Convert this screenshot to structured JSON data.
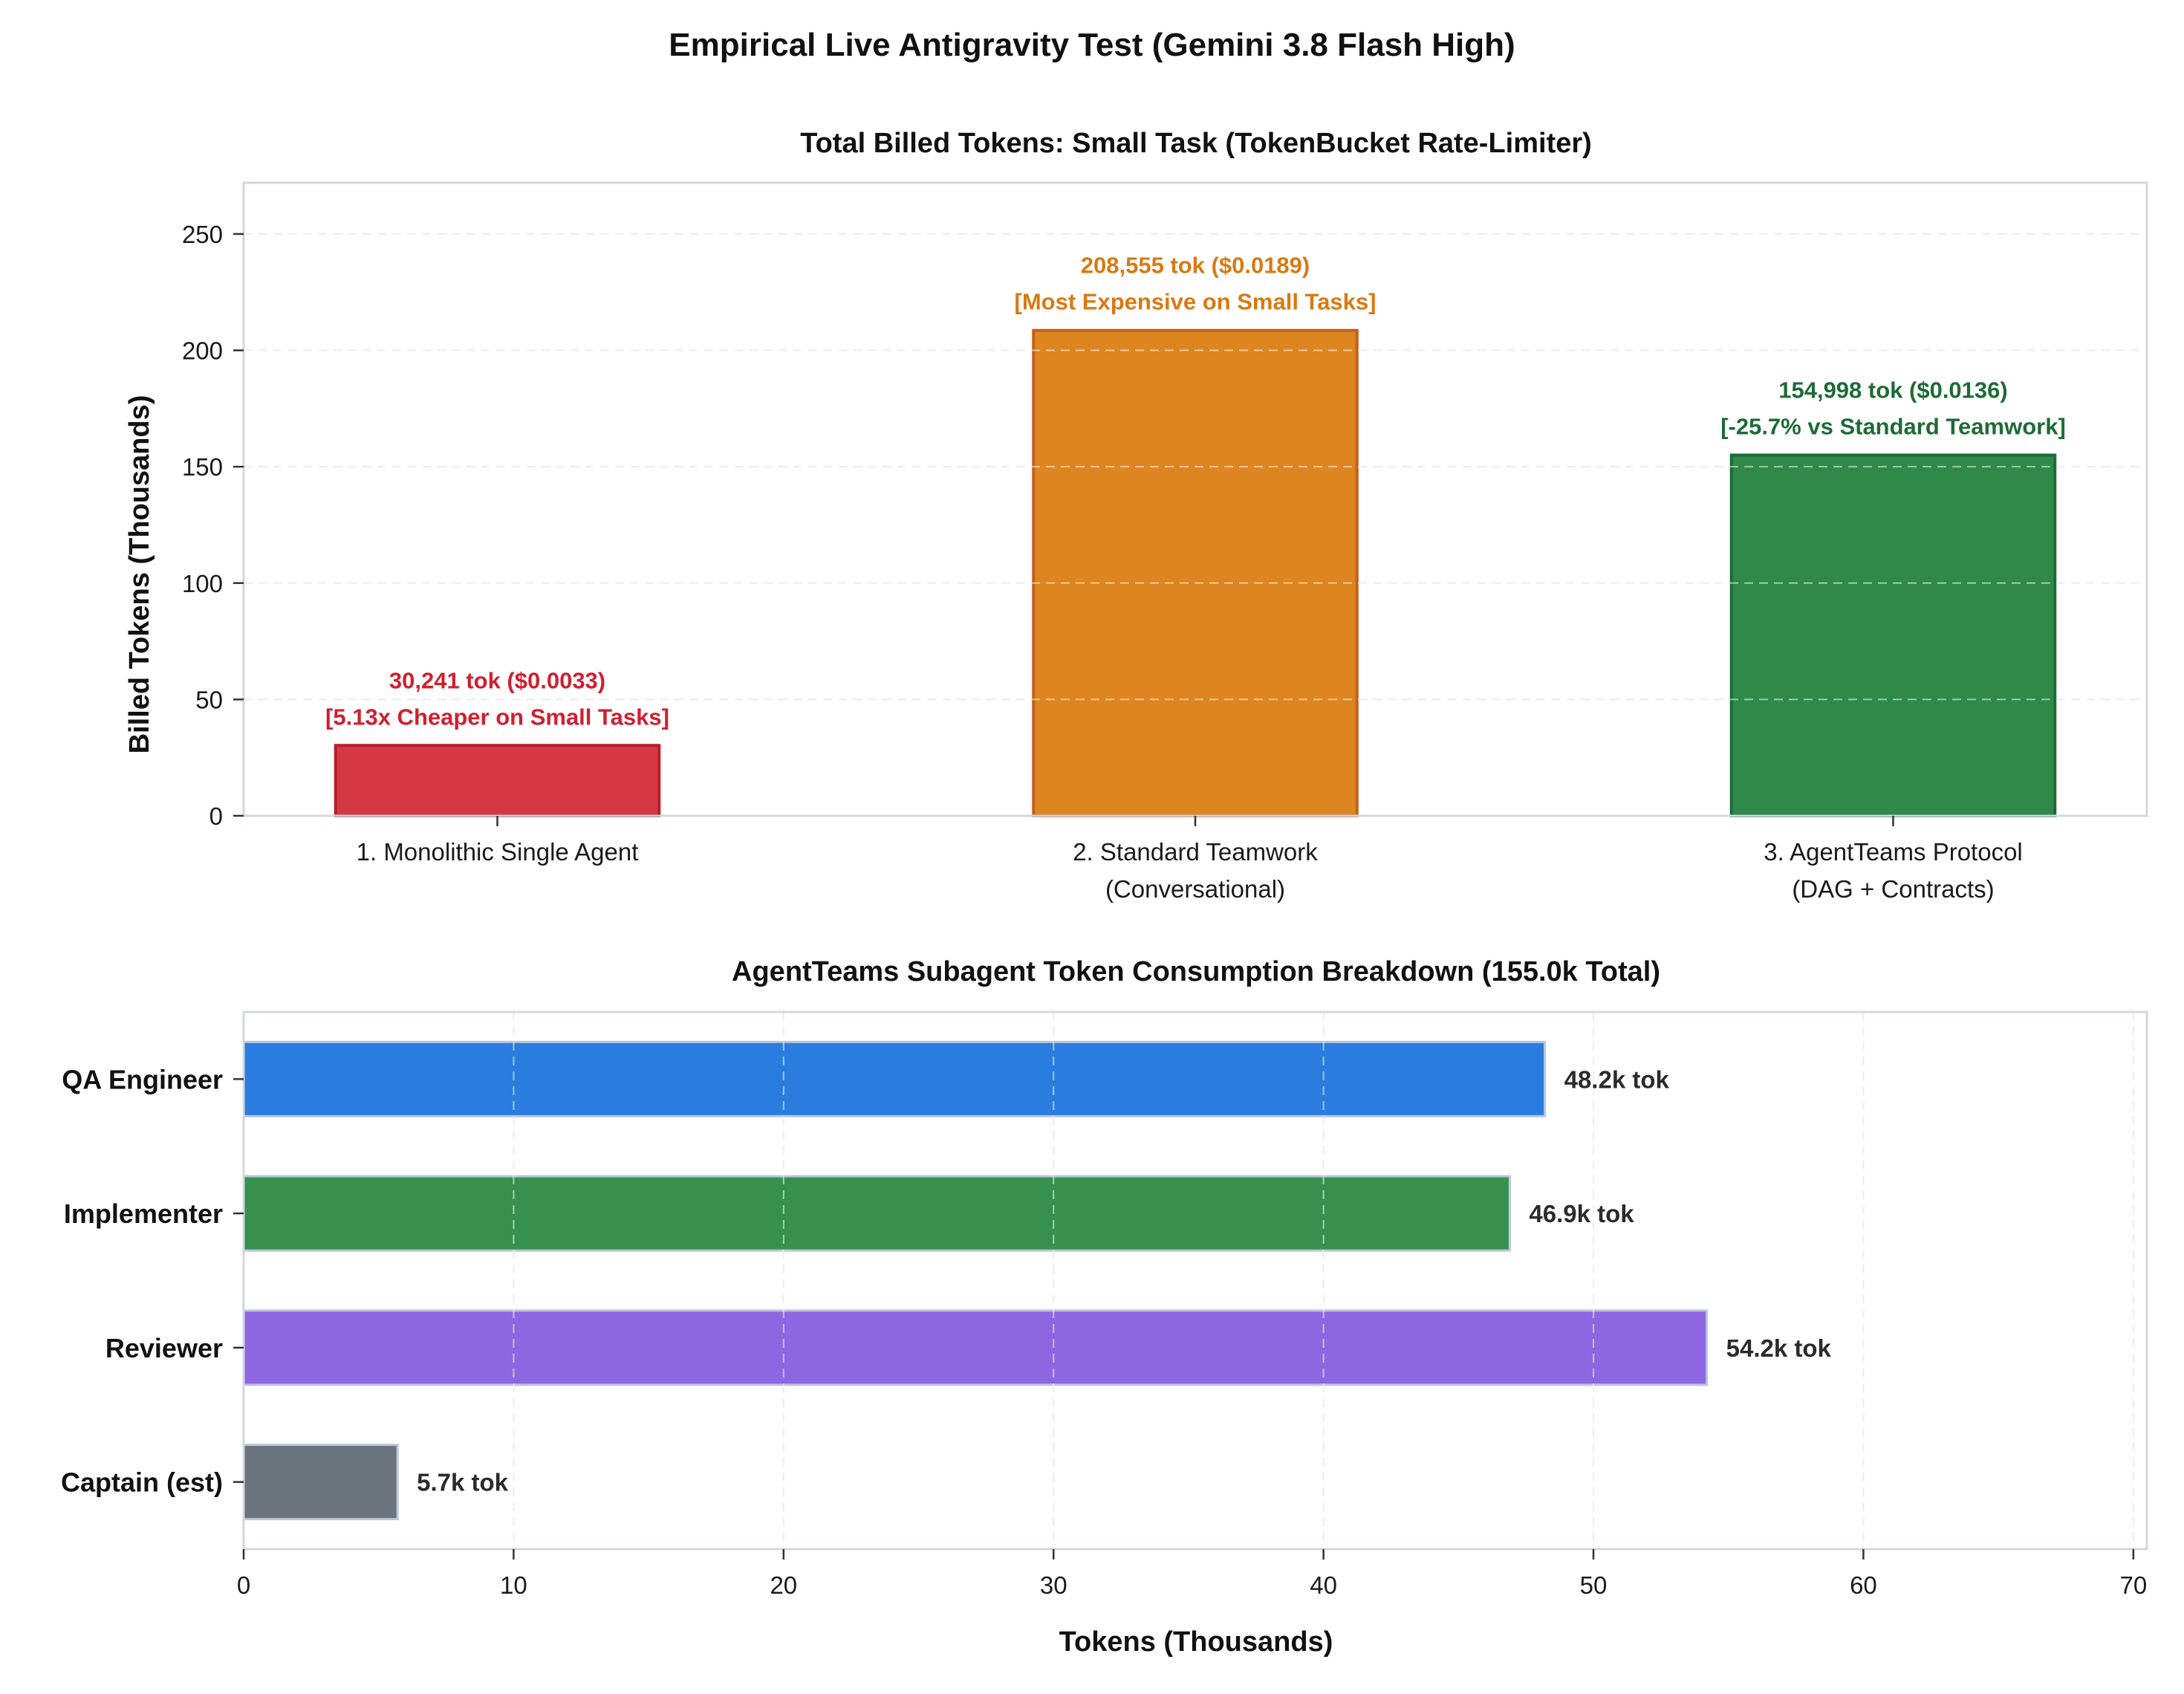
{
  "figure": {
    "suptitle": "Empirical Live Antigravity Test (Gemini 3.8 Flash High)"
  },
  "chart_data": [
    {
      "type": "bar",
      "title": "Total Billed Tokens: Small Task (TokenBucket Rate-Limiter)",
      "xlabel": "",
      "ylabel": "Billed Tokens (Thousands)",
      "ylim": [
        0,
        272
      ],
      "yticks": [
        0,
        50,
        100,
        150,
        200,
        250
      ],
      "grid": "y",
      "categories": [
        [
          "1. Monolithic Single Agent"
        ],
        [
          "2. Standard Teamwork",
          "(Conversational)"
        ],
        [
          "3. AgentTeams Protocol",
          "(DAG + Contracts)"
        ]
      ],
      "values": [
        30.241,
        208.555,
        154.998
      ],
      "colors": [
        "#d63843",
        "#dd8520",
        "#2f8a4a"
      ],
      "edge_colors": [
        "#b51f2b",
        "#c4601a",
        "#1e6b37"
      ],
      "annotations": [
        {
          "lines": [
            "30,241 tok ($0.0033)",
            "[5.13x Cheaper on Small Tasks]"
          ],
          "color": "#d01f2f"
        },
        {
          "lines": [
            "208,555 tok ($0.0189)",
            "[Most Expensive on Small Tasks]"
          ],
          "color": "#d87a12"
        },
        {
          "lines": [
            "154,998 tok ($0.0136)",
            "[-25.7% vs Standard Teamwork]"
          ],
          "color": "#1d6b36"
        }
      ]
    },
    {
      "type": "bar",
      "orientation": "horizontal",
      "title": "AgentTeams Subagent Token Consumption Breakdown (155.0k Total)",
      "xlabel": "Tokens (Thousands)",
      "ylabel": "",
      "xlim": [
        0,
        70.5
      ],
      "xticks": [
        0,
        10,
        20,
        30,
        40,
        50,
        60,
        70
      ],
      "grid": "both",
      "categories": [
        "QA Engineer",
        "Implementer",
        "Reviewer",
        "Captain (est)"
      ],
      "values": [
        48.2,
        46.9,
        54.2,
        5.7
      ],
      "labels": [
        "48.2k tok",
        "46.9k tok",
        "54.2k tok",
        "5.7k tok"
      ],
      "colors": [
        "#2a7ddf",
        "#38904f",
        "#8e66e2",
        "#6b737d"
      ]
    }
  ]
}
